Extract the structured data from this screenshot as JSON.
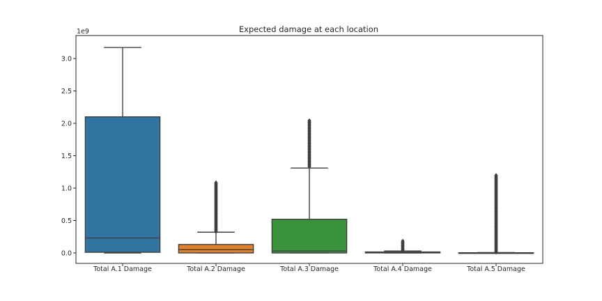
{
  "chart_data": {
    "type": "box",
    "title": "Expected damage at each location",
    "y_multiplier_label": "1e9",
    "ylim": [
      -0.18,
      3.32
    ],
    "y_ticks": [
      0.0,
      0.5,
      1.0,
      1.5,
      2.0,
      2.5,
      3.0
    ],
    "y_tick_labels": [
      "0.0",
      "0.5",
      "1.0",
      "1.5",
      "2.0",
      "2.5",
      "3.0"
    ],
    "grid": false,
    "categories": [
      "Total A.1 Damage",
      "Total A.2 Damage",
      "Total A.3 Damage",
      "Total A.4 Damage",
      "Total A.5 Damage"
    ],
    "boxes": [
      {
        "category": "Total A.1 Damage",
        "color": "#3274a1",
        "whisker_low": 0.0,
        "q1": 0.01,
        "median": 0.23,
        "q3": 2.1,
        "whisker_high": 3.17,
        "outlier_range": null
      },
      {
        "category": "Total A.2 Damage",
        "color": "#e1812c",
        "whisker_low": 0.0,
        "q1": 0.0,
        "median": 0.05,
        "q3": 0.13,
        "whisker_high": 0.32,
        "outlier_range": [
          0.33,
          1.09
        ]
      },
      {
        "category": "Total A.3 Damage",
        "color": "#3a923a",
        "whisker_low": 0.0,
        "q1": 0.0,
        "median": 0.03,
        "q3": 0.52,
        "whisker_high": 1.31,
        "outlier_range": [
          1.33,
          2.05
        ]
      },
      {
        "category": "Total A.4 Damage",
        "color": "#c03d3e",
        "whisker_low": 0.0,
        "q1": 0.0,
        "median": 0.005,
        "q3": 0.015,
        "whisker_high": 0.03,
        "outlier_range": [
          0.03,
          0.19
        ]
      },
      {
        "category": "Total A.5 Damage",
        "color": "#9372b2",
        "whisker_low": 0.0,
        "q1": 0.0,
        "median": 0.0,
        "q3": 0.003,
        "whisker_high": 0.006,
        "outlier_range": [
          0.01,
          1.2
        ]
      }
    ]
  }
}
